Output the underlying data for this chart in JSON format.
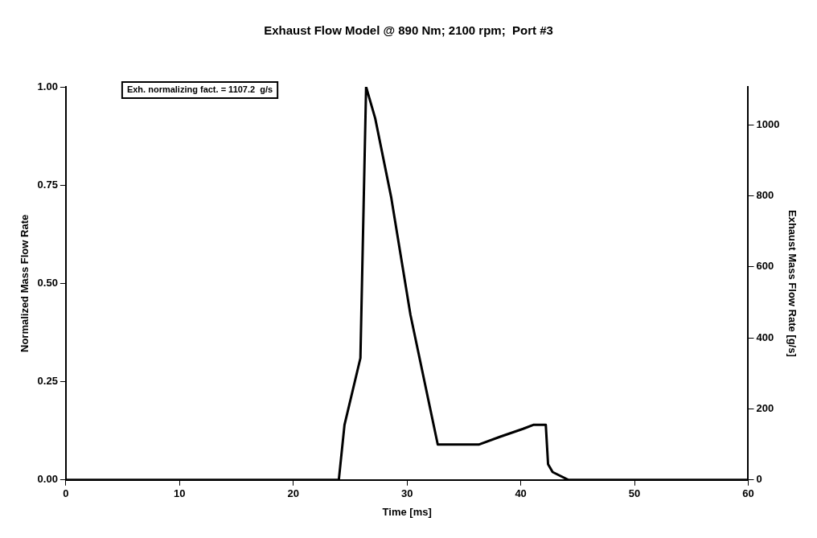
{
  "chart_data": {
    "type": "line",
    "title": "Exhaust Flow Model @ 890 Nm; 2100 rpm;  Port #3",
    "xlabel": "Time [ms]",
    "ylabel": "Normalized Mass Flow Rate",
    "y2label": "Exhaust Mass Flow Rate [g/s]",
    "annotations": [
      "Exh. normalizing fact. = 1107.2  g/s"
    ],
    "x": [
      0,
      24,
      24.5,
      25.9,
      26.4,
      27.2,
      28.6,
      30.3,
      32.7,
      36.3,
      38.2,
      40.2,
      41.1,
      42.2,
      42.4,
      42.8,
      44.2,
      60
    ],
    "series": [
      {
        "color": "#000000",
        "values": [
          0,
          0,
          0.14,
          0.31,
          1.0,
          0.92,
          0.72,
          0.42,
          0.09,
          0.09,
          0.11,
          0.13,
          0.14,
          0.14,
          0.04,
          0.02,
          0,
          0
        ]
      }
    ],
    "xlim": [
      0,
      60
    ],
    "xticks": [
      0,
      10,
      20,
      30,
      40,
      50,
      60
    ],
    "ylim": [
      0,
      1
    ],
    "yticks": [
      {
        "value": 0,
        "label": "0.00"
      },
      {
        "value": 0.25,
        "label": "0.25"
      },
      {
        "value": 0.5,
        "label": "0.50"
      },
      {
        "value": 0.75,
        "label": "0.75"
      },
      {
        "value": 1,
        "label": "1.00"
      }
    ],
    "y2lim": [
      0,
      1107.2
    ],
    "y2ticks": [
      0,
      200,
      400,
      600,
      800,
      1000
    ],
    "grid": false,
    "legend": false,
    "marker": "none",
    "line_style": "solid"
  }
}
